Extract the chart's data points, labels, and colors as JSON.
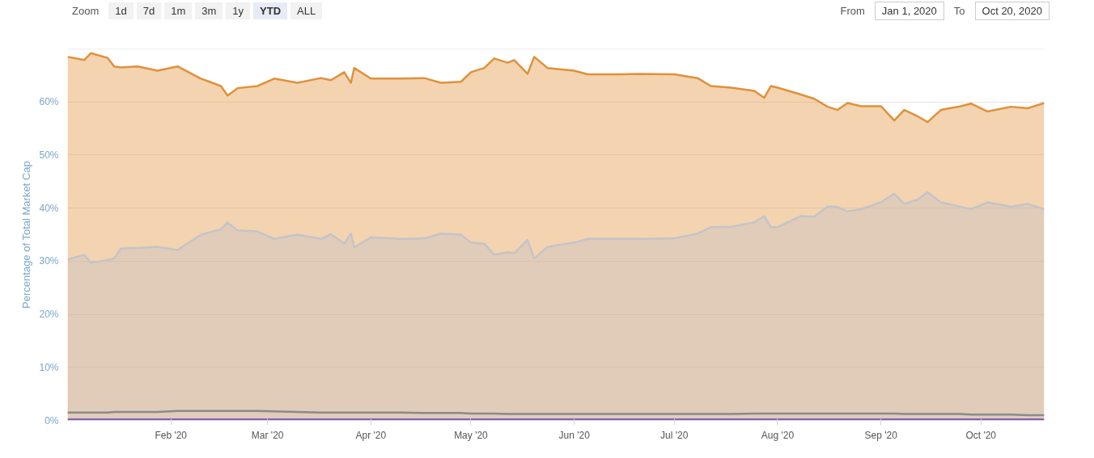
{
  "chart_data": {
    "type": "area",
    "ylabel": "Percentage of Total Market Cap",
    "annotations": [
      "Zoom",
      "1d",
      "7d",
      "1m",
      "3m",
      "1y",
      "YTD",
      "ALL",
      "From",
      "Jan 1, 2020",
      "To",
      "Oct 20, 2020"
    ],
    "xlim": [
      "2020-01-01",
      "2020-10-20"
    ],
    "xticks": [
      {
        "value": "2020-02-01",
        "label": "Feb '20"
      },
      {
        "value": "2020-03-01",
        "label": "Mar '20"
      },
      {
        "value": "2020-04-01",
        "label": "Apr '20"
      },
      {
        "value": "2020-05-01",
        "label": "May '20"
      },
      {
        "value": "2020-06-01",
        "label": "Jun '20"
      },
      {
        "value": "2020-07-01",
        "label": "Jul '20"
      },
      {
        "value": "2020-08-01",
        "label": "Aug '20"
      },
      {
        "value": "2020-09-01",
        "label": "Sep '20"
      },
      {
        "value": "2020-10-01",
        "label": "Oct '20"
      }
    ],
    "ylim": [
      0,
      70
    ],
    "yticks": [
      {
        "value": 0,
        "label": "0%"
      },
      {
        "value": 10,
        "label": "10%"
      },
      {
        "value": 20,
        "label": "20%"
      },
      {
        "value": 30,
        "label": "30%"
      },
      {
        "value": 40,
        "label": "40%"
      },
      {
        "value": 50,
        "label": "50%"
      },
      {
        "value": 60,
        "label": "60%"
      },
      {
        "value": 70,
        "label": null
      }
    ],
    "grid": "y",
    "x": [
      "2020-01-01",
      "2020-01-06",
      "2020-01-08",
      "2020-01-13",
      "2020-01-15",
      "2020-01-17",
      "2020-01-22",
      "2020-01-28",
      "2020-02-03",
      "2020-02-10",
      "2020-02-16",
      "2020-02-18",
      "2020-02-21",
      "2020-02-27",
      "2020-03-03",
      "2020-03-10",
      "2020-03-17",
      "2020-03-20",
      "2020-03-24",
      "2020-03-26",
      "2020-03-27",
      "2020-04-01",
      "2020-04-10",
      "2020-04-17",
      "2020-04-22",
      "2020-04-28",
      "2020-05-01",
      "2020-05-05",
      "2020-05-08",
      "2020-05-12",
      "2020-05-14",
      "2020-05-18",
      "2020-05-20",
      "2020-05-24",
      "2020-06-01",
      "2020-06-05",
      "2020-06-15",
      "2020-06-20",
      "2020-07-01",
      "2020-07-08",
      "2020-07-12",
      "2020-07-18",
      "2020-07-25",
      "2020-07-28",
      "2020-07-30",
      "2020-08-01",
      "2020-08-08",
      "2020-08-12",
      "2020-08-16",
      "2020-08-19",
      "2020-08-22",
      "2020-08-26",
      "2020-09-01",
      "2020-09-05",
      "2020-09-08",
      "2020-09-12",
      "2020-09-15",
      "2020-09-19",
      "2020-09-25",
      "2020-09-28",
      "2020-10-03",
      "2020-10-10",
      "2020-10-15",
      "2020-10-20"
    ],
    "series": [
      {
        "color": "#e0913a",
        "values": [
          68.5,
          67.9,
          69.2,
          68.3,
          66.7,
          66.5,
          66.7,
          65.9,
          66.7,
          64.4,
          63.0,
          61.2,
          62.6,
          63.0,
          64.4,
          63.6,
          64.5,
          64.1,
          65.6,
          63.6,
          66.4,
          64.4,
          64.4,
          64.5,
          63.6,
          63.8,
          65.6,
          66.4,
          68.2,
          67.4,
          67.9,
          65.3,
          68.5,
          66.4,
          65.9,
          65.2,
          65.2,
          65.3,
          65.2,
          64.5,
          63.0,
          62.7,
          62.1,
          60.8,
          63.0,
          62.7,
          61.4,
          60.6,
          59.1,
          58.5,
          59.8,
          59.2,
          59.2,
          56.5,
          58.5,
          57.3,
          56.2,
          58.5,
          59.2,
          59.7,
          58.2,
          59.1,
          58.8,
          59.8
        ]
      },
      {
        "color": "#c4c4c8",
        "values": [
          30.3,
          31.2,
          29.7,
          30.2,
          30.5,
          32.4,
          32.5,
          32.7,
          32.1,
          35.0,
          36.0,
          37.3,
          35.8,
          35.6,
          34.2,
          35.0,
          34.2,
          35.1,
          33.3,
          35.2,
          32.6,
          34.5,
          34.2,
          34.3,
          35.2,
          35.0,
          33.5,
          33.3,
          31.2,
          31.7,
          31.5,
          34.0,
          30.5,
          32.7,
          33.5,
          34.2,
          34.2,
          34.2,
          34.3,
          35.2,
          36.4,
          36.5,
          37.3,
          38.5,
          36.4,
          36.4,
          38.5,
          38.4,
          40.3,
          40.2,
          39.4,
          39.8,
          41.1,
          42.7,
          40.8,
          41.6,
          43.0,
          41.1,
          40.2,
          39.8,
          41.1,
          40.3,
          40.8,
          39.8
        ]
      },
      {
        "type": "line",
        "color": "#8a8a8a",
        "values": [
          1.5,
          1.5,
          1.5,
          1.5,
          1.6,
          1.6,
          1.6,
          1.6,
          1.8,
          1.8,
          1.8,
          1.8,
          1.8,
          1.8,
          1.7,
          1.6,
          1.5,
          1.5,
          1.5,
          1.5,
          1.5,
          1.5,
          1.5,
          1.4,
          1.4,
          1.4,
          1.3,
          1.3,
          1.3,
          1.2,
          1.2,
          1.2,
          1.2,
          1.2,
          1.2,
          1.2,
          1.2,
          1.2,
          1.2,
          1.2,
          1.2,
          1.2,
          1.3,
          1.3,
          1.3,
          1.3,
          1.3,
          1.3,
          1.3,
          1.3,
          1.3,
          1.3,
          1.3,
          1.3,
          1.2,
          1.2,
          1.2,
          1.2,
          1.2,
          1.1,
          1.1,
          1.1,
          1.0,
          1.0
        ]
      },
      {
        "type": "line",
        "color": "#8a5fb5",
        "values": [
          0.2,
          0.2,
          0.2,
          0.2,
          0.2,
          0.2,
          0.2,
          0.2,
          0.2,
          0.2,
          0.2,
          0.2,
          0.2,
          0.2,
          0.2,
          0.2,
          0.2,
          0.2,
          0.2,
          0.2,
          0.2,
          0.2,
          0.2,
          0.2,
          0.2,
          0.2,
          0.2,
          0.2,
          0.2,
          0.2,
          0.2,
          0.2,
          0.2,
          0.2,
          0.2,
          0.2,
          0.2,
          0.2,
          0.2,
          0.2,
          0.2,
          0.2,
          0.2,
          0.2,
          0.2,
          0.2,
          0.2,
          0.2,
          0.2,
          0.2,
          0.2,
          0.2,
          0.2,
          0.2,
          0.2,
          0.2,
          0.2,
          0.2,
          0.2,
          0.2,
          0.2,
          0.2,
          0.2,
          0.2
        ]
      }
    ]
  }
}
